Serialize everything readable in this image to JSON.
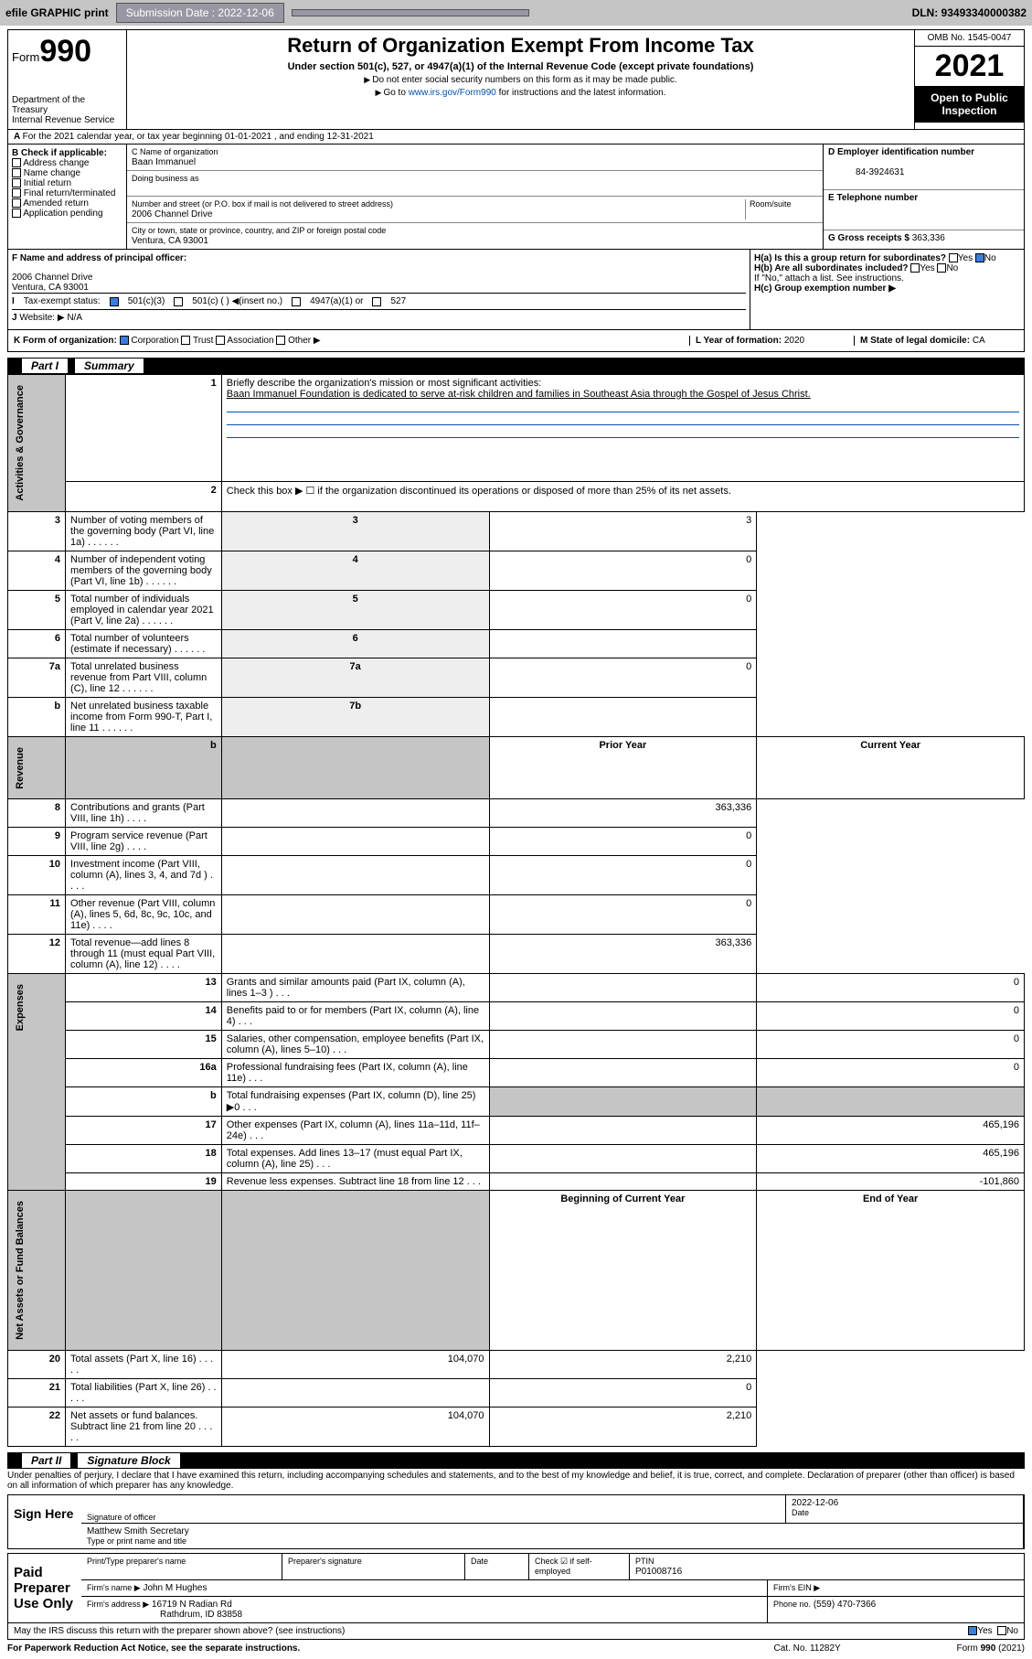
{
  "top": {
    "efile": "efile GRAPHIC print",
    "subdate_lbl": "Submission Date : 2022-12-06",
    "dln": "DLN: 93493340000382"
  },
  "header": {
    "form": "Form",
    "num": "990",
    "dept": "Department of the Treasury\nInternal Revenue Service",
    "title": "Return of Organization Exempt From Income Tax",
    "sub": "Under section 501(c), 527, or 4947(a)(1) of the Internal Revenue Code (except private foundations)",
    "inst1": "Do not enter social security numbers on this form as it may be made public.",
    "inst2_pre": "Go to ",
    "inst2_link": "www.irs.gov/Form990",
    "inst2_post": " for instructions and the latest information.",
    "omb": "OMB No. 1545-0047",
    "year": "2021",
    "open": "Open to Public Inspection"
  },
  "A": {
    "line": "For the 2021 calendar year, or tax year beginning 01-01-2021   , and ending 12-31-2021",
    "B_lbl": "B Check if applicable:",
    "B_opts": [
      "Address change",
      "Name change",
      "Initial return",
      "Final return/terminated",
      "Amended return",
      "Application pending"
    ],
    "C_lbl": "C Name of organization",
    "C_val": "Baan Immanuel",
    "dba": "Doing business as",
    "addr_lbl": "Number and street (or P.O. box if mail is not delivered to street address)",
    "room": "Room/suite",
    "addr": "2006 Channel Drive",
    "city_lbl": "City or town, state or province, country, and ZIP or foreign postal code",
    "city": "Ventura, CA  93001",
    "D_lbl": "D Employer identification number",
    "D_val": "84-3924631",
    "E_lbl": "E Telephone number",
    "G_lbl": "G Gross receipts $",
    "G_val": "363,336",
    "F_lbl": "F  Name and address of principal officer:",
    "F_addr1": "2006 Channel Drive",
    "F_addr2": "Ventura, CA  93001",
    "Ha": "H(a)  Is this a group return for subordinates?",
    "Hb": "H(b)  Are all subordinates included?",
    "Hno": "If \"No,\" attach a list. See instructions.",
    "Hc": "H(c)  Group exemption number ▶",
    "I_lbl": "Tax-exempt status:",
    "I_501c3": "501(c)(3)",
    "I_501c": "501(c) (  ) ◀(insert no.)",
    "I_4947": "4947(a)(1) or",
    "I_527": "527",
    "J_lbl": "Website: ▶",
    "J_val": "N/A",
    "K_lbl": "K Form of organization:",
    "K_opts": [
      "Corporation",
      "Trust",
      "Association",
      "Other ▶"
    ],
    "L_lbl": "L Year of formation:",
    "L_val": "2020",
    "M_lbl": "M State of legal domicile:",
    "M_val": "CA",
    "yes": "Yes",
    "no": "No"
  },
  "partI": {
    "title": "Part I",
    "sub": "Summary",
    "l1": "Briefly describe the organization's mission or most significant activities:",
    "mission": "Baan Immanuel Foundation is dedicated to serve at-risk children and families in Southeast Asia through the Gospel of Jesus Christ.",
    "l2": "Check this box ▶ ☐  if the organization discontinued its operations or disposed of more than 25% of its net assets.",
    "rows_gov": [
      {
        "n": "3",
        "d": "Number of voting members of the governing body (Part VI, line 1a)",
        "bn": "3",
        "v": "3"
      },
      {
        "n": "4",
        "d": "Number of independent voting members of the governing body (Part VI, line 1b)",
        "bn": "4",
        "v": "0"
      },
      {
        "n": "5",
        "d": "Total number of individuals employed in calendar year 2021 (Part V, line 2a)",
        "bn": "5",
        "v": "0"
      },
      {
        "n": "6",
        "d": "Total number of volunteers (estimate if necessary)",
        "bn": "6",
        "v": ""
      },
      {
        "n": "7a",
        "d": "Total unrelated business revenue from Part VIII, column (C), line 12",
        "bn": "7a",
        "v": "0"
      },
      {
        "n": "b",
        "d": "Net unrelated business taxable income from Form 990-T, Part I, line 11",
        "bn": "7b",
        "v": ""
      }
    ],
    "col_py": "Prior Year",
    "col_cy": "Current Year",
    "rows_rev": [
      {
        "n": "8",
        "d": "Contributions and grants (Part VIII, line 1h)",
        "py": "",
        "cy": "363,336"
      },
      {
        "n": "9",
        "d": "Program service revenue (Part VIII, line 2g)",
        "py": "",
        "cy": "0"
      },
      {
        "n": "10",
        "d": "Investment income (Part VIII, column (A), lines 3, 4, and 7d )",
        "py": "",
        "cy": "0"
      },
      {
        "n": "11",
        "d": "Other revenue (Part VIII, column (A), lines 5, 6d, 8c, 9c, 10c, and 11e)",
        "py": "",
        "cy": "0"
      },
      {
        "n": "12",
        "d": "Total revenue—add lines 8 through 11 (must equal Part VIII, column (A), line 12)",
        "py": "",
        "cy": "363,336"
      }
    ],
    "rows_exp": [
      {
        "n": "13",
        "d": "Grants and similar amounts paid (Part IX, column (A), lines 1–3 )",
        "py": "",
        "cy": "0"
      },
      {
        "n": "14",
        "d": "Benefits paid to or for members (Part IX, column (A), line 4)",
        "py": "",
        "cy": "0"
      },
      {
        "n": "15",
        "d": "Salaries, other compensation, employee benefits (Part IX, column (A), lines 5–10)",
        "py": "",
        "cy": "0"
      },
      {
        "n": "16a",
        "d": "Professional fundraising fees (Part IX, column (A), line 11e)",
        "py": "",
        "cy": "0"
      },
      {
        "n": "b",
        "d": "Total fundraising expenses (Part IX, column (D), line 25) ▶0",
        "py": "SHADE",
        "cy": "SHADE"
      },
      {
        "n": "17",
        "d": "Other expenses (Part IX, column (A), lines 11a–11d, 11f–24e)",
        "py": "",
        "cy": "465,196"
      },
      {
        "n": "18",
        "d": "Total expenses. Add lines 13–17 (must equal Part IX, column (A), line 25)",
        "py": "",
        "cy": "465,196"
      },
      {
        "n": "19",
        "d": "Revenue less expenses. Subtract line 18 from line 12",
        "py": "",
        "cy": "-101,860"
      }
    ],
    "col_bcy": "Beginning of Current Year",
    "col_eoy": "End of Year",
    "rows_na": [
      {
        "n": "20",
        "d": "Total assets (Part X, line 16)",
        "py": "104,070",
        "cy": "2,210"
      },
      {
        "n": "21",
        "d": "Total liabilities (Part X, line 26)",
        "py": "",
        "cy": "0"
      },
      {
        "n": "22",
        "d": "Net assets or fund balances. Subtract line 21 from line 20",
        "py": "104,070",
        "cy": "2,210"
      }
    ],
    "vtabs": [
      "Activities & Governance",
      "Revenue",
      "Expenses",
      "Net Assets or Fund Balances"
    ]
  },
  "partII": {
    "title": "Part II",
    "sub": "Signature Block",
    "decl": "Under penalties of perjury, I declare that I have examined this return, including accompanying schedules and statements, and to the best of my knowledge and belief, it is true, correct, and complete. Declaration of preparer (other than officer) is based on all information of which preparer has any knowledge.",
    "sign": "Sign Here",
    "sigoff": "Signature of officer",
    "date": "Date",
    "sigdate": "2022-12-06",
    "name": "Matthew Smith Secretary",
    "typel": "Type or print name and title",
    "paid": "Paid Preparer Use Only",
    "ptname": "Print/Type preparer's name",
    "psig": "Preparer's signature",
    "pdate": "Date",
    "check": "Check ☑ if self-employed",
    "ptin_l": "PTIN",
    "ptin": "P01008716",
    "firm": "Firm's name  ▶",
    "firm_v": "John M Hughes",
    "ein": "Firm's EIN ▶",
    "faddr": "Firm's address ▶",
    "faddr_v1": "16719 N Radian Rd",
    "faddr_v2": "Rathdrum, ID  83858",
    "phone": "Phone no.",
    "phone_v": "(559) 470-7366",
    "may": "May the IRS discuss this return with the preparer shown above? (see instructions)",
    "pra": "For Paperwork Reduction Act Notice, see the separate instructions.",
    "cat": "Cat. No. 11282Y",
    "formv": "Form 990 (2021)"
  }
}
